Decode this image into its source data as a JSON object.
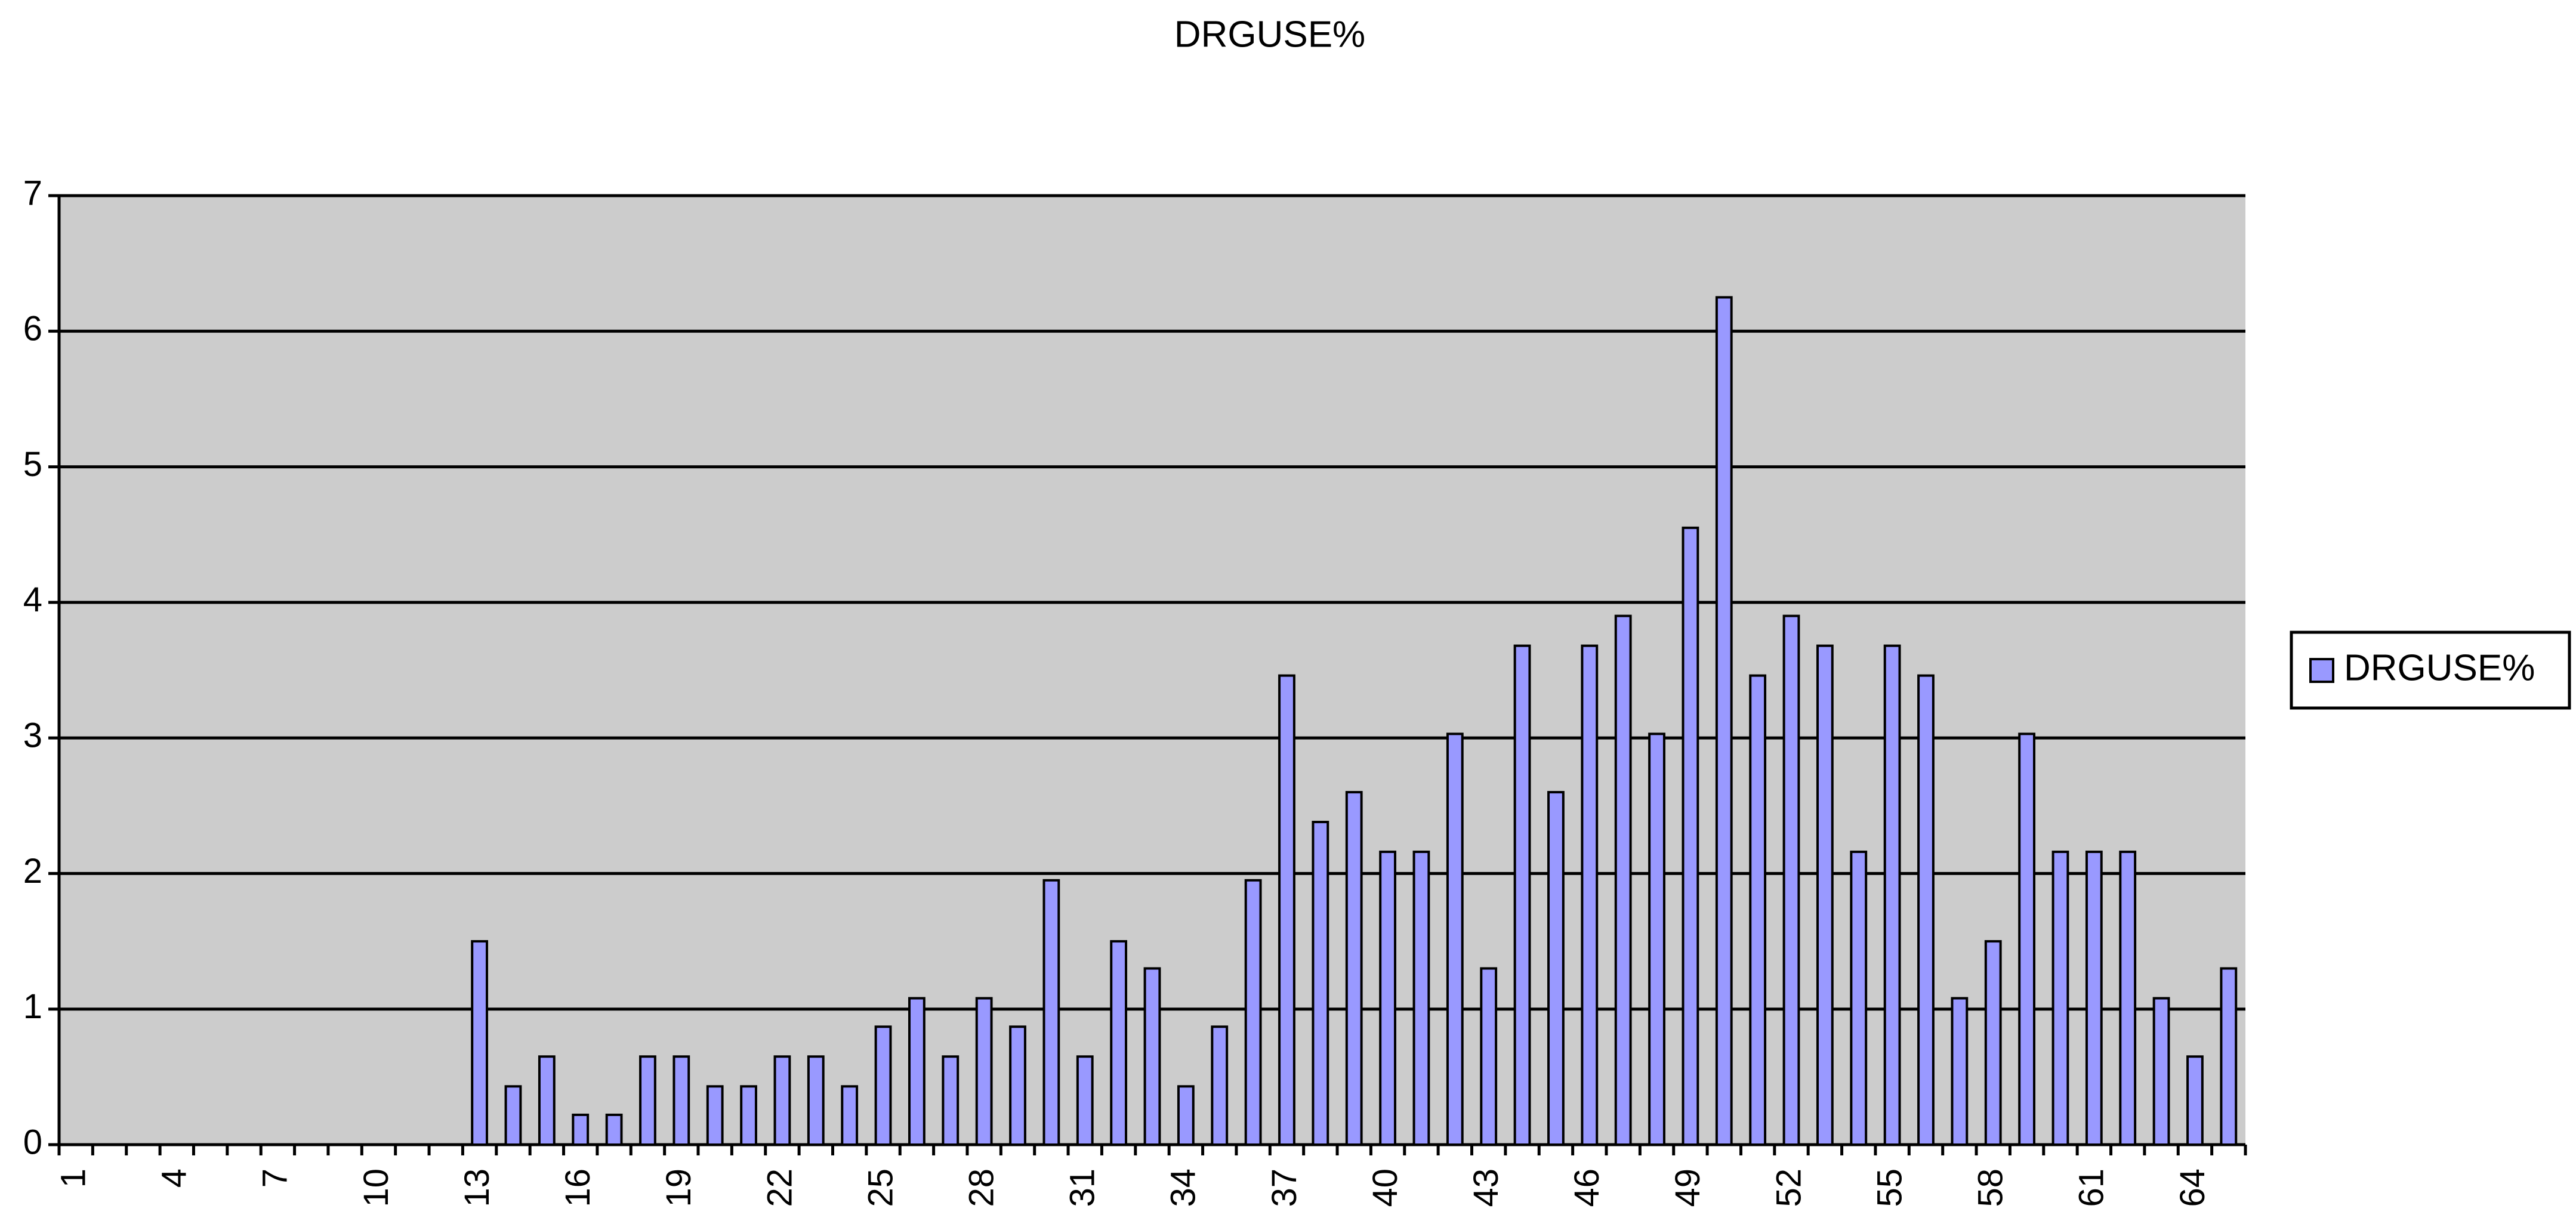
{
  "chart_data": {
    "type": "bar",
    "title": "DRGUSE%",
    "categories": [
      1,
      null,
      null,
      4,
      null,
      null,
      7,
      null,
      null,
      10,
      null,
      null,
      13,
      null,
      null,
      16,
      null,
      null,
      19,
      null,
      null,
      22,
      null,
      null,
      25,
      null,
      null,
      28,
      null,
      null,
      31,
      null,
      null,
      34,
      null,
      null,
      37,
      null,
      null,
      40,
      null,
      null,
      43,
      null,
      null,
      46,
      null,
      null,
      49,
      null,
      null,
      52,
      null,
      null,
      55,
      null,
      null,
      58,
      null,
      null,
      61,
      null,
      null,
      64,
      null
    ],
    "series": [
      {
        "name": "DRGUSE%",
        "color": "#9999ff",
        "values": [
          0,
          0,
          0,
          0,
          0,
          0,
          0,
          0,
          0,
          0,
          0,
          0,
          1.5,
          0.43,
          0.65,
          0.22,
          0.22,
          0.65,
          0.65,
          0.43,
          0.43,
          0.65,
          0.65,
          0.43,
          0.87,
          1.08,
          0.65,
          1.08,
          0.87,
          1.95,
          0.65,
          1.5,
          1.3,
          0.43,
          0.87,
          1.95,
          3.46,
          2.38,
          2.6,
          2.16,
          2.16,
          3.03,
          1.3,
          3.68,
          2.6,
          3.68,
          3.9,
          3.03,
          4.55,
          6.25,
          3.46,
          3.9,
          3.68,
          2.16,
          3.68,
          3.46,
          1.08,
          1.5,
          3.03,
          2.16,
          2.16,
          2.16,
          1.08,
          0.65,
          1.3
        ]
      }
    ],
    "ylim": [
      0,
      7
    ],
    "yticks": [
      0,
      1,
      2,
      3,
      4,
      5,
      6,
      7
    ],
    "grid": true,
    "legend": "right",
    "plot_background": "#cccccc"
  }
}
